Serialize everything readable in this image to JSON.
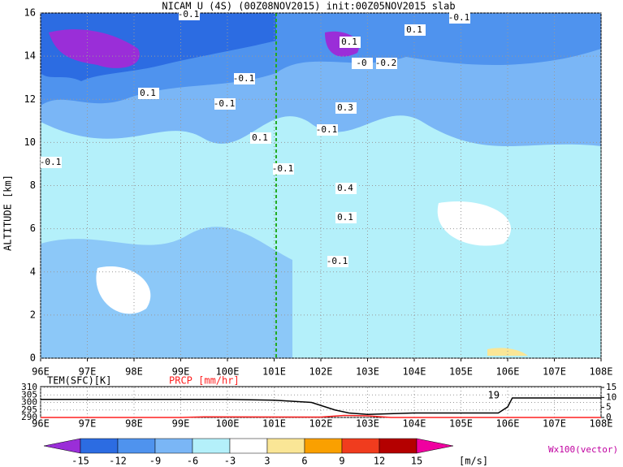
{
  "chart_data": [
    {
      "type": "field",
      "title": "NICAM U (4S) (00Z08NOV2015) init:00Z05NOV2015 slab",
      "y_label": "ALTITUDE [km]",
      "xlim": [
        96,
        108
      ],
      "ylim": [
        0,
        16
      ],
      "xticks": [
        {
          "value": 96,
          "label": "96E"
        },
        {
          "value": 97,
          "label": "97E"
        },
        {
          "value": 98,
          "label": "98E"
        },
        {
          "value": 99,
          "label": "99E"
        },
        {
          "value": 100,
          "label": "100E"
        },
        {
          "value": 101,
          "label": "101E"
        },
        {
          "value": 102,
          "label": "102E"
        },
        {
          "value": 103,
          "label": "103E"
        },
        {
          "value": 104,
          "label": "104E"
        },
        {
          "value": 105,
          "label": "105E"
        },
        {
          "value": 106,
          "label": "106E"
        },
        {
          "value": 107,
          "label": "107E"
        },
        {
          "value": 108,
          "label": "108E"
        }
      ],
      "yticks": [
        0,
        2,
        4,
        6,
        8,
        10,
        12,
        14,
        16
      ],
      "grid": true,
      "annotations": [
        "-0.1",
        "0.1",
        "-0.1",
        "0.1",
        "-0",
        "-0.2",
        "0.1",
        "-0.1",
        "-0.1",
        "0.3",
        "-0.1",
        "0.1",
        "-0.1",
        "-0.1",
        "0.4",
        "0.1",
        "-0.1"
      ]
    },
    {
      "type": "line",
      "xlim": [
        96,
        108
      ],
      "ylim": [
        290,
        310
      ],
      "y2lim": [
        0,
        15
      ],
      "xticks": [
        {
          "value": 96,
          "label": "96E"
        },
        {
          "value": 97,
          "label": "97E"
        },
        {
          "value": 98,
          "label": "98E"
        },
        {
          "value": 99,
          "label": "99E"
        },
        {
          "value": 100,
          "label": "100E"
        },
        {
          "value": 101,
          "label": "101E"
        },
        {
          "value": 102,
          "label": "102E"
        },
        {
          "value": 103,
          "label": "103E"
        },
        {
          "value": 104,
          "label": "104E"
        },
        {
          "value": 105,
          "label": "105E"
        },
        {
          "value": 106,
          "label": "106E"
        },
        {
          "value": 107,
          "label": "107E"
        },
        {
          "value": 108,
          "label": "108E"
        }
      ],
      "yticks": [
        290,
        295,
        300,
        305,
        310
      ],
      "y2ticks": [
        0,
        5,
        10,
        15
      ],
      "series": [
        {
          "name": "TEM(SFC)[K]",
          "color": "#000000",
          "x": [
            96,
            100,
            101,
            101.8,
            102.3,
            102.6,
            103,
            104,
            105.8,
            106,
            106.1,
            108
          ],
          "values": [
            302,
            302,
            301.5,
            300,
            295,
            293,
            292,
            293,
            293,
            297,
            303,
            303
          ]
        },
        {
          "name": "PRCP [mm/hr]",
          "color": "#ff2020",
          "axis": "y2",
          "x": [
            96,
            99,
            99.5,
            102,
            102.5,
            103,
            103.5,
            108
          ],
          "values": [
            0,
            0,
            0.3,
            0.2,
            1,
            0.8,
            0,
            0
          ]
        }
      ],
      "annotations": [
        "19"
      ]
    }
  ],
  "colorbar": {
    "levels": [
      -15,
      -12,
      -9,
      -6,
      -3,
      3,
      6,
      9,
      12,
      15
    ],
    "colors": [
      "#9a2ed8",
      "#2c6ce2",
      "#4f93ee",
      "#7ab6f6",
      "#b4f0fa",
      "#ffffff",
      "#fae696",
      "#faa000",
      "#f03c1e",
      "#b40000",
      "#f000a0"
    ],
    "unit": "[m/s]"
  },
  "vector_label": "Wx100(vector)"
}
